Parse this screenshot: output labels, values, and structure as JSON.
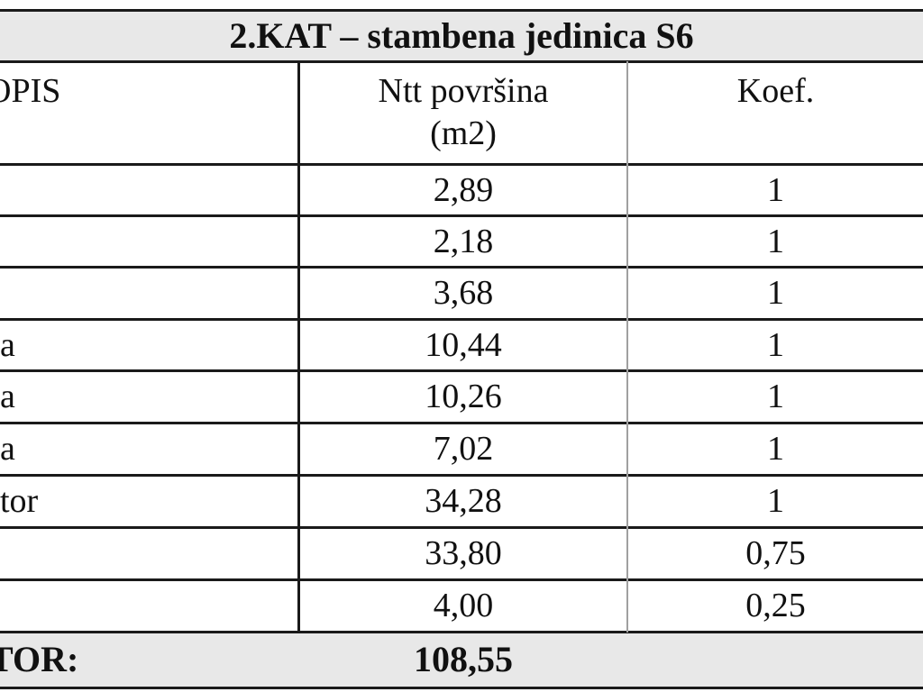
{
  "title": "2.KAT – stambena jedinica S6",
  "header": {
    "opis": "OPIS",
    "area_line1": "Ntt površina",
    "area_line2": "(m2)",
    "koef": "Koef."
  },
  "rows": [
    {
      "opis": "",
      "area": "2,89",
      "koef": "1"
    },
    {
      "opis": "",
      "area": "2,18",
      "koef": "1"
    },
    {
      "opis": "",
      "area": "3,68",
      "koef": "1"
    },
    {
      "opis": "a",
      "area": "10,44",
      "koef": "1"
    },
    {
      "opis": "a",
      "area": "10,26",
      "koef": "1"
    },
    {
      "opis": "a",
      "area": "7,02",
      "koef": "1"
    },
    {
      "opis": "tor",
      "area": "34,28",
      "koef": "1"
    },
    {
      "opis": "",
      "area": "33,80",
      "koef": "0,75"
    },
    {
      "opis": "",
      "area": "4,00",
      "koef": "0,25"
    }
  ],
  "footer": {
    "label": "TOR:",
    "total": "108,55"
  }
}
